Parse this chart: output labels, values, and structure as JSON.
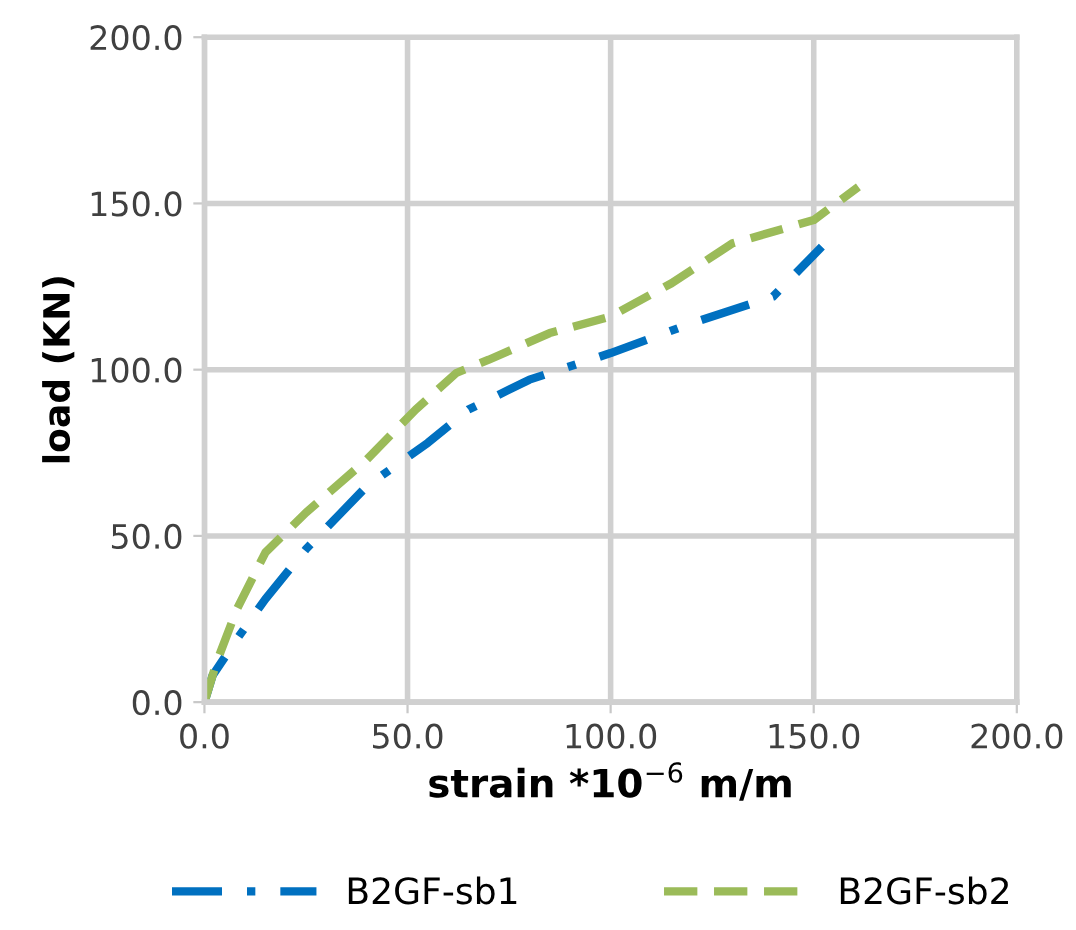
{
  "chart_data": {
    "type": "line",
    "xlabel": "strain *10$^{−6}$ m/m",
    "ylabel": "load (KN)",
    "xlim": [
      0,
      200
    ],
    "ylim": [
      0,
      200
    ],
    "xticks": [
      {
        "value": 0,
        "label": "0.0"
      },
      {
        "value": 50,
        "label": "50.0"
      },
      {
        "value": 100,
        "label": "100.0"
      },
      {
        "value": 150,
        "label": "150.0"
      },
      {
        "value": 200,
        "label": "200.0"
      }
    ],
    "yticks": [
      {
        "value": 0,
        "label": "0.0"
      },
      {
        "value": 50,
        "label": "50.0"
      },
      {
        "value": 100,
        "label": "100.0"
      },
      {
        "value": 150,
        "label": "150.0"
      },
      {
        "value": 200,
        "label": "200.0"
      }
    ],
    "grid": true,
    "legend": "bottom",
    "marker": "none",
    "series": [
      {
        "name": "B2GF-sb1",
        "color": "#0070c0",
        "line_style": "dashdot",
        "x": [
          0,
          2,
          8,
          15,
          25,
          40,
          55,
          65,
          80,
          100,
          120,
          140,
          152
        ],
        "values": [
          0,
          8,
          19,
          31,
          46,
          65,
          78,
          88,
          97,
          105,
          114,
          122,
          137
        ]
      },
      {
        "name": "B2GF-sb2",
        "color": "#9bbb59",
        "line_style": "dashed",
        "x": [
          0,
          3,
          8,
          15,
          25,
          40,
          52,
          62,
          70,
          85,
          100,
          115,
          130,
          150,
          161
        ],
        "values": [
          0,
          12,
          28,
          45,
          57,
          73,
          88,
          99,
          103,
          111,
          116,
          126,
          138,
          145,
          155
        ]
      }
    ]
  }
}
